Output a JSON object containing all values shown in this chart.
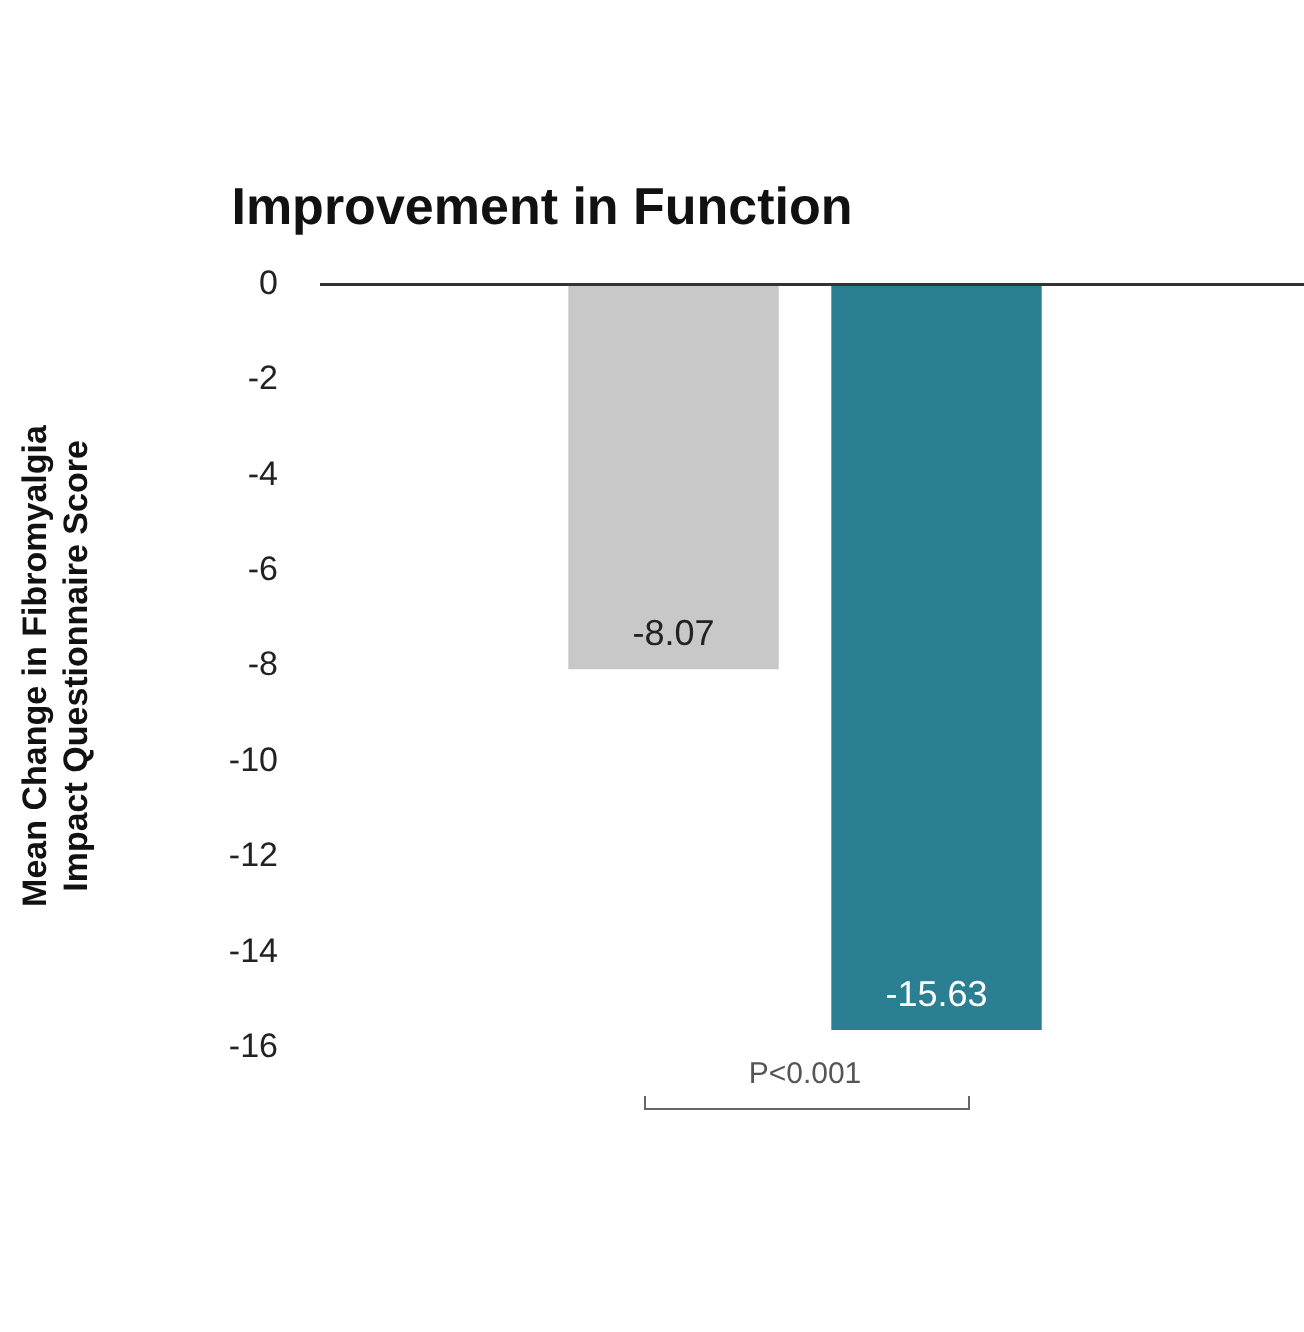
{
  "chart_data": {
    "type": "bar",
    "title": "Improvement in Function",
    "ylabel": "Mean Change in Fibromyalgia\nImpact Questionnaire Score",
    "categories": [
      null,
      null
    ],
    "values": [
      -8.07,
      -15.63
    ],
    "colors": [
      "#c8c8c8",
      "#2a7f93"
    ],
    "ylim": [
      -16,
      0
    ],
    "yticks": [
      -16,
      -14,
      -12,
      -10,
      -8,
      -6,
      -4,
      -2,
      0
    ],
    "grid": false,
    "legend": false,
    "data_labels": true,
    "annotations": [
      "P<0.001"
    ]
  }
}
